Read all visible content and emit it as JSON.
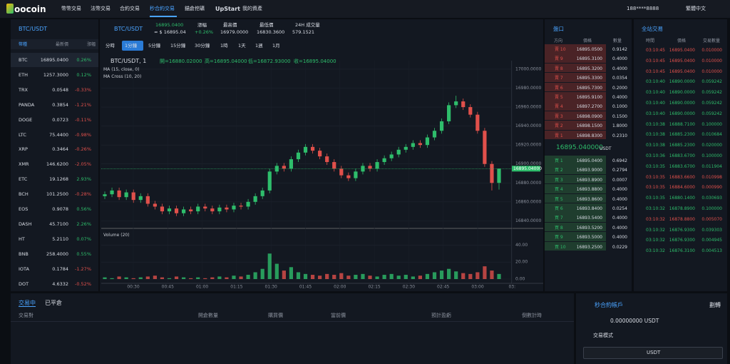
{
  "nav": {
    "logo": "oocoin",
    "menu": [
      "幣幣交易",
      "法幣交易",
      "合約交易",
      "秒合約交易",
      "錨倉挖礦",
      "UpStart",
      "我的資產"
    ],
    "active": 3,
    "user": "188****8888",
    "language": "繁體中文"
  },
  "markets": {
    "title": "BTC/USDT",
    "headers": [
      "幣種",
      "最新價",
      "漲幅"
    ],
    "rows": [
      {
        "coin": "BTC",
        "price": "16895.0400",
        "change": "0.26%",
        "color": "#2ebd6b"
      },
      {
        "coin": "ETH",
        "price": "1257.3000",
        "change": "0.12%",
        "color": "#2ebd6b"
      },
      {
        "coin": "TRX",
        "price": "0.0548",
        "change": "-0.33%",
        "color": "#e0504b"
      },
      {
        "coin": "PANDA",
        "price": "0.3854",
        "change": "-1.21%",
        "color": "#e0504b"
      },
      {
        "coin": "DOGE",
        "price": "0.0723",
        "change": "-0.11%",
        "color": "#e0504b"
      },
      {
        "coin": "LTC",
        "price": "75.4400",
        "change": "-0.98%",
        "color": "#e0504b"
      },
      {
        "coin": "XRP",
        "price": "0.3464",
        "change": "-0.26%",
        "color": "#e0504b"
      },
      {
        "coin": "XMR",
        "price": "146.6200",
        "change": "-2.05%",
        "color": "#e0504b"
      },
      {
        "coin": "ETC",
        "price": "19.1268",
        "change": "2.93%",
        "color": "#2ebd6b"
      },
      {
        "coin": "BCH",
        "price": "101.2500",
        "change": "-0.28%",
        "color": "#e0504b"
      },
      {
        "coin": "EOS",
        "price": "0.9078",
        "change": "0.56%",
        "color": "#2ebd6b"
      },
      {
        "coin": "DASH",
        "price": "45.7100",
        "change": "2.26%",
        "color": "#2ebd6b"
      },
      {
        "coin": "HT",
        "price": "5.2110",
        "change": "0.07%",
        "color": "#2ebd6b"
      },
      {
        "coin": "BNB",
        "price": "258.4000",
        "change": "0.55%",
        "color": "#2ebd6b"
      },
      {
        "coin": "IOTA",
        "price": "0.1784",
        "change": "-1.27%",
        "color": "#e0504b"
      },
      {
        "coin": "DOT",
        "price": "4.6332",
        "change": "-0.52%",
        "color": "#e0504b"
      }
    ]
  },
  "ticker": {
    "pair": "BTC/USDT",
    "price": "16895.0400",
    "usd": "≈ $ 16895.04",
    "change_label": "漲幅",
    "change": "+0.26%",
    "high_label": "最高價",
    "high": "16979.0000",
    "low_label": "最低價",
    "low": "16830.3600",
    "volume_label": "24H 成交量",
    "volume": "579.1521"
  },
  "intervals": {
    "items": [
      "分時",
      "1分鐘",
      "5分鐘",
      "15分鐘",
      "30分鐘",
      "1時",
      "1天",
      "1週",
      "1月"
    ],
    "active": 1
  },
  "chart_data": {
    "type": "candlestick",
    "title": "BTC/USDT, 1",
    "legend": [
      "開=16880.02000",
      "高=16895.04000",
      "低=16872.93000",
      "收=16895.04000"
    ],
    "indicators": [
      "MA (15, close, 0)",
      "MA Cross (10, 20)"
    ],
    "open": [
      16866,
      16868,
      16872,
      16865,
      16870,
      16862,
      16866,
      16858,
      16855,
      16850,
      16853,
      16848,
      16852,
      16850,
      16855,
      16853,
      16850,
      16854,
      16852,
      16856,
      16855,
      16860,
      16866,
      16872,
      16892,
      16898,
      16895,
      16905,
      16912,
      16918,
      16914,
      16908,
      16902,
      16895,
      16888,
      16885,
      16892,
      16898,
      16895,
      16902,
      16906,
      16910,
      16915,
      16918,
      16922,
      16920,
      16928,
      16935,
      16945,
      16962,
      16966,
      16960,
      16952,
      16935,
      16900,
      16880.02
    ],
    "high": [
      16871,
      16875,
      16875,
      16873,
      16873,
      16869,
      16869,
      16861,
      16858,
      16856,
      16856,
      16855,
      16855,
      16858,
      16858,
      16856,
      16857,
      16857,
      16859,
      16859,
      16863,
      16869,
      16875,
      16895,
      16901,
      16901,
      16908,
      16915,
      16921,
      16921,
      16917,
      16911,
      16905,
      16898,
      16891,
      16895,
      16901,
      16901,
      16905,
      16909,
      16913,
      16918,
      16921,
      16925,
      16925,
      16931,
      16938,
      16948,
      16965,
      16972,
      16969,
      16963,
      16955,
      16938,
      16903,
      16895.04
    ],
    "low": [
      16863,
      16865,
      16862,
      16862,
      16859,
      16859,
      16855,
      16852,
      16847,
      16847,
      16845,
      16845,
      16847,
      16847,
      16850,
      16847,
      16847,
      16849,
      16849,
      16852,
      16852,
      16857,
      16863,
      16869,
      16889,
      16892,
      16892,
      16902,
      16909,
      16911,
      16905,
      16899,
      16892,
      16885,
      16882,
      16882,
      16889,
      16892,
      16892,
      16899,
      16903,
      16907,
      16912,
      16915,
      16917,
      16917,
      16925,
      16932,
      16942,
      16959,
      16957,
      16949,
      16932,
      16897,
      16872,
      16872.93
    ],
    "close": [
      16868,
      16872,
      16865,
      16870,
      16862,
      16866,
      16858,
      16855,
      16850,
      16853,
      16848,
      16852,
      16850,
      16855,
      16853,
      16850,
      16854,
      16852,
      16856,
      16855,
      16860,
      16866,
      16872,
      16892,
      16898,
      16895,
      16905,
      16912,
      16918,
      16914,
      16908,
      16902,
      16895,
      16888,
      16885,
      16892,
      16898,
      16895,
      16902,
      16906,
      16910,
      16915,
      16918,
      16922,
      16920,
      16928,
      16935,
      16945,
      16962,
      16966,
      16960,
      16952,
      16935,
      16900,
      16880,
      16895.04
    ],
    "up_color": "#2ebd6b",
    "down_color": "#e0504b",
    "ylim": [
      16832,
      17009
    ],
    "yticks": [
      {
        "value": 17000,
        "label": "17000.0000"
      },
      {
        "value": 16980,
        "label": "16980.0000"
      },
      {
        "value": 16960,
        "label": "16960.0000"
      },
      {
        "value": 16940,
        "label": "16940.0000"
      },
      {
        "value": 16920,
        "label": "16920.0000"
      },
      {
        "value": 16900,
        "label": "16900.0000"
      },
      {
        "value": 16880,
        "label": "16880.0000"
      },
      {
        "value": 16860,
        "label": "16860.0000"
      },
      {
        "value": 16840,
        "label": "16840.0000"
      }
    ],
    "last_price": 16895.04,
    "last_price_label": "16895.04000",
    "xticks": [
      "00:30",
      "00:45",
      "01:00",
      "01:15",
      "01:30",
      "01:45",
      "02:00",
      "02:15",
      "02:30",
      "02:45",
      "03:00",
      "03:"
    ],
    "volume": {
      "title": "Volume (20)",
      "values": [
        2,
        1,
        3,
        2,
        1,
        2,
        3,
        4,
        2,
        1,
        3,
        2,
        1,
        2,
        1,
        2,
        3,
        2,
        4,
        3,
        5,
        8,
        12,
        30,
        18,
        10,
        14,
        8,
        6,
        5,
        4,
        6,
        5,
        7,
        4,
        5,
        6,
        4,
        3,
        5,
        6,
        4,
        5,
        3,
        4,
        6,
        8,
        10,
        12,
        9,
        7,
        6,
        8,
        15,
        10,
        6
      ],
      "ylim": [
        0,
        47
      ],
      "yticks": [
        {
          "value": 40,
          "label": "40.00"
        },
        {
          "value": 20,
          "label": "20.00"
        },
        {
          "value": 0,
          "label": "0.00"
        }
      ]
    }
  },
  "orderbook": {
    "title": "盤口",
    "headers": [
      "方向",
      "價格",
      "數量"
    ],
    "asks": [
      {
        "side": "賣 10",
        "price": "16895.0500",
        "qty": "0.9142"
      },
      {
        "side": "賣 9",
        "price": "16895.3100",
        "qty": "0.4000"
      },
      {
        "side": "賣 8",
        "price": "16895.3200",
        "qty": "0.4000"
      },
      {
        "side": "賣 7",
        "price": "16895.3300",
        "qty": "0.0354"
      },
      {
        "side": "賣 6",
        "price": "16895.7300",
        "qty": "0.2000"
      },
      {
        "side": "賣 5",
        "price": "16895.9100",
        "qty": "0.4000"
      },
      {
        "side": "賣 4",
        "price": "16897.2700",
        "qty": "0.1000"
      },
      {
        "side": "賣 3",
        "price": "16898.0900",
        "qty": "0.1500"
      },
      {
        "side": "賣 2",
        "price": "16898.1500",
        "qty": "1.8000"
      },
      {
        "side": "賣 1",
        "price": "16898.8300",
        "qty": "0.2310"
      }
    ],
    "mid": "16895.040000",
    "mid_unit": "USDT",
    "bids": [
      {
        "side": "買 1",
        "price": "16895.0400",
        "qty": "0.6942"
      },
      {
        "side": "買 2",
        "price": "16893.9000",
        "qty": "0.2794"
      },
      {
        "side": "買 3",
        "price": "16893.8900",
        "qty": "0.0007"
      },
      {
        "side": "買 4",
        "price": "16893.8800",
        "qty": "0.4000"
      },
      {
        "side": "買 5",
        "price": "16893.8600",
        "qty": "0.4000"
      },
      {
        "side": "買 6",
        "price": "16893.8400",
        "qty": "0.0254"
      },
      {
        "side": "買 7",
        "price": "16893.5400",
        "qty": "0.4000"
      },
      {
        "side": "買 8",
        "price": "16893.5200",
        "qty": "0.4000"
      },
      {
        "side": "買 9",
        "price": "16893.5000",
        "qty": "0.4000"
      },
      {
        "side": "買 10",
        "price": "16893.2500",
        "qty": "0.0229"
      }
    ]
  },
  "trades": {
    "title": "全站交易",
    "headers": [
      "時間",
      "價格",
      "交易數量"
    ],
    "rows": [
      {
        "time": "03:10:45",
        "price": "16895.0400",
        "amount": "0.010000",
        "color": "#e0504b"
      },
      {
        "time": "03:10:45",
        "price": "16895.0400",
        "amount": "0.010000",
        "color": "#e0504b"
      },
      {
        "time": "03:10:45",
        "price": "16895.0400",
        "amount": "0.010000",
        "color": "#e0504b"
      },
      {
        "time": "03:10:40",
        "price": "16890.0000",
        "amount": "0.059242",
        "color": "#2ebd6b"
      },
      {
        "time": "03:10:40",
        "price": "16890.0000",
        "amount": "0.059242",
        "color": "#2ebd6b"
      },
      {
        "time": "03:10:40",
        "price": "16890.0000",
        "amount": "0.059242",
        "color": "#2ebd6b"
      },
      {
        "time": "03:10:40",
        "price": "16890.0000",
        "amount": "0.059242",
        "color": "#2ebd6b"
      },
      {
        "time": "03:10:38",
        "price": "16888.7100",
        "amount": "0.100000",
        "color": "#2ebd6b"
      },
      {
        "time": "03:10:38",
        "price": "16885.2300",
        "amount": "0.010684",
        "color": "#2ebd6b"
      },
      {
        "time": "03:10:38",
        "price": "16885.2300",
        "amount": "0.020000",
        "color": "#2ebd6b"
      },
      {
        "time": "03:10:36",
        "price": "16883.6700",
        "amount": "0.100000",
        "color": "#2ebd6b"
      },
      {
        "time": "03:10:35",
        "price": "16883.6700",
        "amount": "0.011904",
        "color": "#2ebd6b"
      },
      {
        "time": "03:10:35",
        "price": "16883.6600",
        "amount": "0.010998",
        "color": "#e0504b"
      },
      {
        "time": "03:10:35",
        "price": "16884.6000",
        "amount": "0.000990",
        "color": "#e0504b"
      },
      {
        "time": "03:10:35",
        "price": "16880.1400",
        "amount": "0.030693",
        "color": "#2ebd6b"
      },
      {
        "time": "03:10:32",
        "price": "16878.8900",
        "amount": "0.100000",
        "color": "#2ebd6b"
      },
      {
        "time": "03:10:32",
        "price": "16878.8800",
        "amount": "0.005070",
        "color": "#e0504b"
      },
      {
        "time": "03:10:32",
        "price": "16876.9300",
        "amount": "0.039303",
        "color": "#2ebd6b"
      },
      {
        "time": "03:10:32",
        "price": "16876.9300",
        "amount": "0.004945",
        "color": "#2ebd6b"
      },
      {
        "time": "03:10:32",
        "price": "16876.3100",
        "amount": "0.004513",
        "color": "#2ebd6b"
      }
    ]
  },
  "positions": {
    "tabs": [
      "交易中",
      "已平倉"
    ],
    "headers": [
      "交易對",
      "開倉數量",
      "購買價",
      "當前價",
      "預計盈虧",
      "倒數計時"
    ]
  },
  "account": {
    "title": "秒合約帳戶",
    "transfer": "劃轉",
    "balance": "0.00000000 USDT",
    "mode": "交易模式",
    "button": "USDT"
  }
}
